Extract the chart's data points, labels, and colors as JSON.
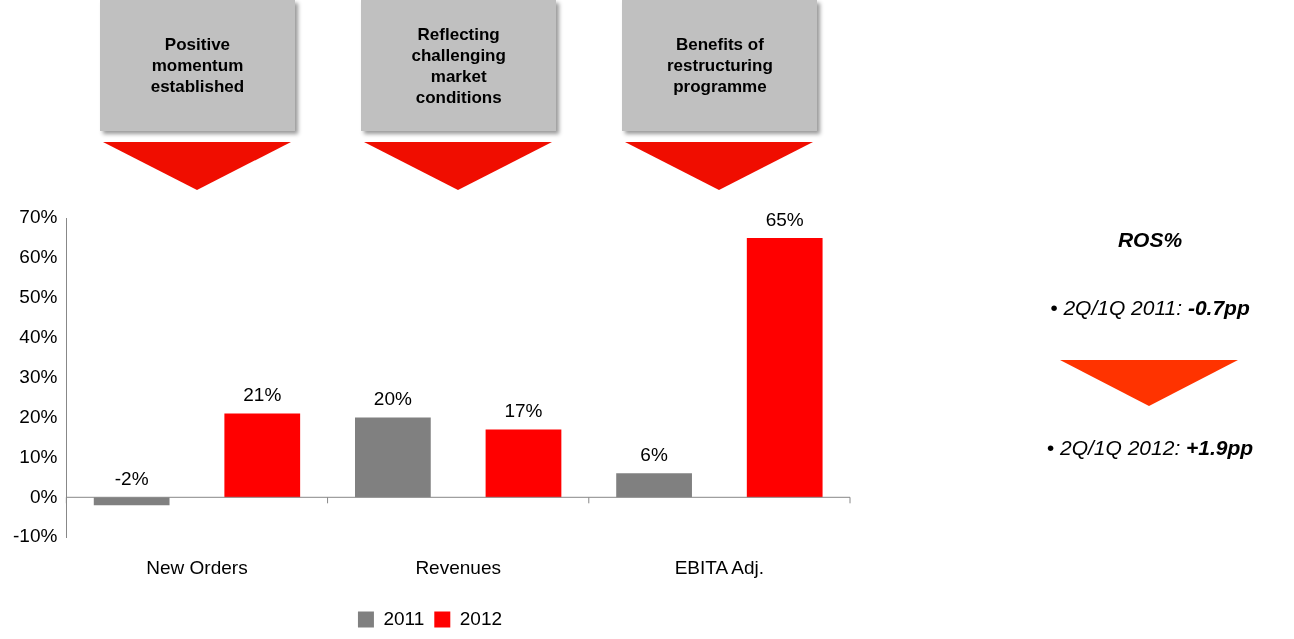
{
  "chart_data": {
    "type": "bar",
    "categories": [
      "New Orders",
      "Revenues",
      "EBITA Adj."
    ],
    "series": [
      {
        "name": "2011",
        "color": "#808080",
        "values": [
          -2,
          20,
          6
        ],
        "value_labels": [
          "-2%",
          "20%",
          "6%"
        ]
      },
      {
        "name": "2012",
        "color": "#ff0000",
        "values": [
          21,
          17,
          65
        ],
        "value_labels": [
          "21%",
          "17%",
          "65%"
        ]
      }
    ],
    "ylim": [
      -10,
      70
    ],
    "yticks": [
      {
        "value": -10,
        "label": "-10%"
      },
      {
        "value": 0,
        "label": "0%"
      },
      {
        "value": 10,
        "label": "10%"
      },
      {
        "value": 20,
        "label": "20%"
      },
      {
        "value": 30,
        "label": "30%"
      },
      {
        "value": 40,
        "label": "40%"
      },
      {
        "value": 50,
        "label": "50%"
      },
      {
        "value": 60,
        "label": "60%"
      },
      {
        "value": 70,
        "label": "70%"
      }
    ],
    "legend": "bottom",
    "annotations": [
      "Positive momentum established",
      "Reflecting challenging market conditions",
      "Benefits of restructuring programme",
      "ROS%",
      "• 2Q/1Q 2011: -0.7pp",
      "• 2Q/1Q 2012: +1.9pp"
    ]
  }
}
